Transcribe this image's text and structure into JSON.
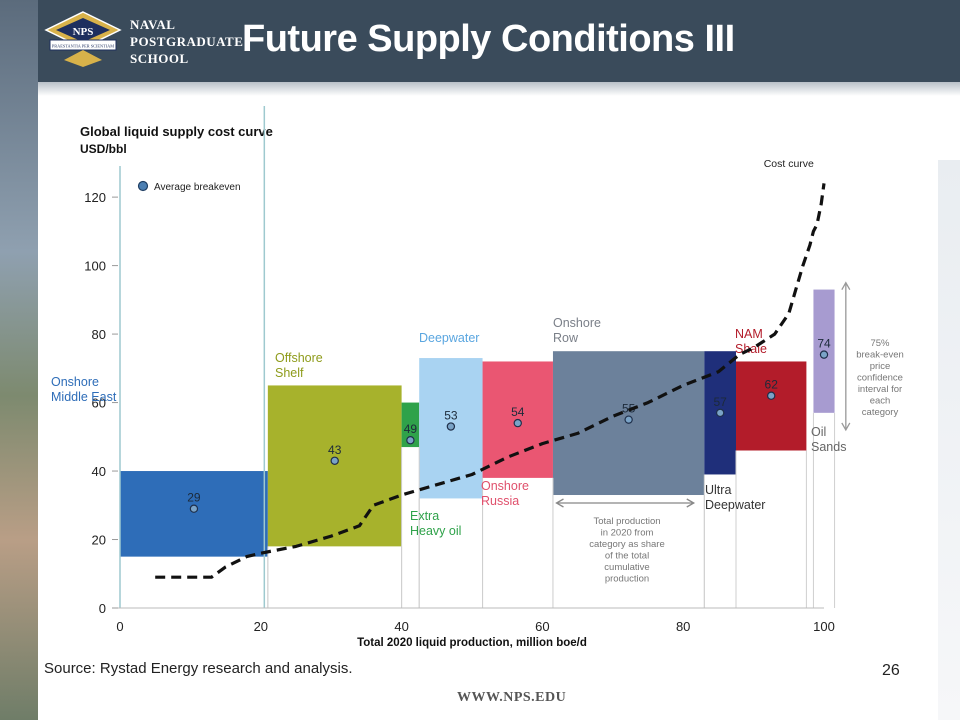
{
  "header": {
    "school_line1": "NAVAL",
    "school_line2": "POSTGRADUATE",
    "school_line3": "SCHOOL",
    "logo_text": "NPS",
    "logo_motto": "PRAESTANTIA PER SCIENTIAM",
    "title": "Future Supply Conditions III"
  },
  "chart_data": {
    "type": "bar",
    "title": "Global liquid supply cost curve",
    "ylabel": "USD/bbl",
    "xlabel": "Total 2020 liquid production, million boe/d",
    "xlim": [
      0,
      100
    ],
    "ylim": [
      0,
      125
    ],
    "xticks": [
      0,
      20,
      40,
      60,
      80,
      100
    ],
    "yticks": [
      0,
      20,
      40,
      60,
      80,
      100,
      120
    ],
    "legend_label": "Average breakeven",
    "series": [
      {
        "name": "Onshore Middle East",
        "x0": 0,
        "x1": 21,
        "low": 15,
        "high": 40,
        "breakeven": 29,
        "color": "#2e6db8",
        "label_color": "#2e6db8"
      },
      {
        "name": "Offshore Shelf",
        "x0": 21,
        "x1": 40,
        "low": 18,
        "high": 65,
        "breakeven": 43,
        "color": "#a7b22c",
        "label_color": "#8e9b1a"
      },
      {
        "name": "Extra Heavy oil",
        "x0": 40,
        "x1": 42.5,
        "low": 47,
        "high": 60,
        "breakeven": 49,
        "color": "#2fa24a",
        "label_color": "#2fa24a"
      },
      {
        "name": "Deepwater",
        "x0": 42.5,
        "x1": 51.5,
        "low": 32,
        "high": 73,
        "breakeven": 53,
        "color": "#a9d3f2",
        "label_color": "#5aa6e0"
      },
      {
        "name": "Onshore Russia",
        "x0": 51.5,
        "x1": 61.5,
        "low": 38,
        "high": 72,
        "breakeven": 54,
        "color": "#ea5672",
        "label_color": "#e0506c"
      },
      {
        "name": "Onshore Row",
        "x0": 61.5,
        "x1": 83,
        "low": 33,
        "high": 75,
        "breakeven": 55,
        "color": "#6c819b",
        "label_color": "#7a7f88"
      },
      {
        "name": "Ultra Deepwater",
        "x0": 83,
        "x1": 87.5,
        "low": 39,
        "high": 75,
        "breakeven": 57,
        "color": "#1f2f7a",
        "label_color": "#333333"
      },
      {
        "name": "NAM Shale",
        "x0": 87.5,
        "x1": 97.5,
        "low": 46,
        "high": 72,
        "breakeven": 62,
        "color": "#b31c2a",
        "label_color": "#b31c2a"
      },
      {
        "name": "Oil Sands",
        "x0": 98.5,
        "x1": 101.5,
        "low": 57,
        "high": 93,
        "breakeven": 74,
        "color": "#a79bd0",
        "label_color": "#666666"
      }
    ],
    "cost_curve": {
      "label": "Cost curve",
      "x": [
        5,
        13,
        15,
        18,
        20,
        25,
        30,
        34,
        36,
        40,
        45,
        50,
        55,
        60,
        65,
        70,
        75,
        80,
        85,
        88,
        90,
        93,
        95,
        96,
        97,
        98,
        98.5,
        99,
        99.3,
        99.6,
        100
      ],
      "y": [
        9,
        9,
        12,
        15,
        16,
        18,
        21,
        24,
        30,
        33,
        36,
        39,
        44,
        48,
        51,
        56,
        60,
        65,
        69,
        74,
        76,
        80,
        86,
        93,
        100,
        106,
        110,
        112,
        115,
        118,
        124
      ]
    },
    "confidence_note": [
      "75%",
      "break-even",
      "price",
      "confidence",
      "interval for",
      "each",
      "category"
    ],
    "share_note": [
      "Total production",
      "in 2020 from",
      "category as share",
      "of the total",
      "cumulative",
      "production"
    ]
  },
  "footer": {
    "source": "Source: Rystad Energy research and analysis.",
    "page_number": "26",
    "url": "WWW.NPS.EDU"
  }
}
